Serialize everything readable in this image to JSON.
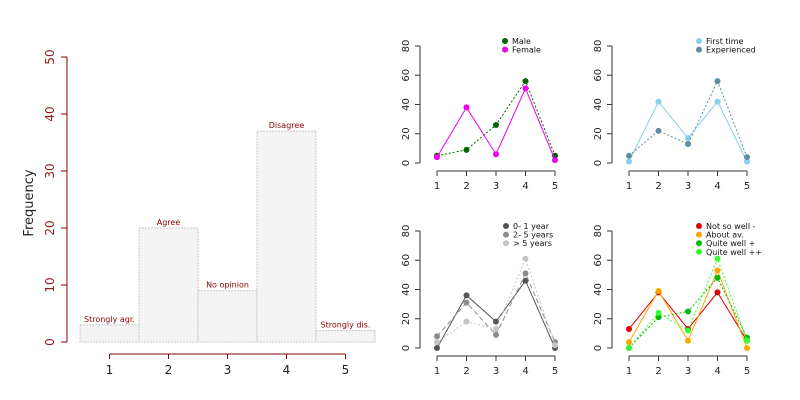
{
  "chart_data": [
    {
      "type": "bar",
      "ylabel": "Frequency",
      "categories": [
        "1",
        "2",
        "3",
        "4",
        "5"
      ],
      "bar_labels": [
        "Strongly agr.",
        "Agree",
        "No opinion",
        "Disagree",
        "Strongly dis."
      ],
      "values": [
        3,
        20,
        9,
        37,
        2
      ],
      "ylim": [
        0,
        50
      ],
      "yticks": [
        0,
        10,
        20,
        30,
        40,
        50
      ],
      "grid": false
    },
    {
      "type": "line",
      "x": [
        1,
        2,
        3,
        4,
        5
      ],
      "ylim": [
        0,
        80
      ],
      "yticks": [
        0,
        20,
        40,
        60,
        80
      ],
      "legend_position": "top-right",
      "series": [
        {
          "name": "Male",
          "values": [
            5,
            9,
            26,
            56,
            5
          ],
          "color": "#006400",
          "dash": "2,2"
        },
        {
          "name": "Female",
          "values": [
            4,
            38,
            6,
            51,
            2
          ],
          "color": "#ee00ee",
          "dash": ""
        }
      ]
    },
    {
      "type": "line",
      "x": [
        1,
        2,
        3,
        4,
        5
      ],
      "ylim": [
        0,
        80
      ],
      "yticks": [
        0,
        20,
        40,
        60,
        80
      ],
      "legend_position": "top-right",
      "series": [
        {
          "name": "First time",
          "values": [
            1,
            42,
            17,
            42,
            1
          ],
          "color": "#87ceeb",
          "dash": ""
        },
        {
          "name": "Experienced",
          "values": [
            5,
            22,
            13,
            56,
            4
          ],
          "color": "#5f8f9f",
          "dash": "2,2"
        }
      ]
    },
    {
      "type": "line",
      "x": [
        1,
        2,
        3,
        4,
        5
      ],
      "ylim": [
        0,
        80
      ],
      "yticks": [
        0,
        20,
        40,
        60,
        80
      ],
      "legend_position": "top-right",
      "series": [
        {
          "name": "0- 1 year",
          "values": [
            0,
            36,
            18,
            46,
            0
          ],
          "color": "#555555",
          "dash": ""
        },
        {
          "name": "2- 5 years",
          "values": [
            8,
            31,
            9,
            51,
            4
          ],
          "color": "#8c8c8c",
          "dash": "5,3"
        },
        {
          "name": "> 5 years",
          "values": [
            4,
            18,
            13,
            61,
            2
          ],
          "color": "#c4c4c4",
          "dash": "2,2"
        }
      ]
    },
    {
      "type": "line",
      "x": [
        1,
        2,
        3,
        4,
        5
      ],
      "ylim": [
        0,
        80
      ],
      "yticks": [
        0,
        20,
        40,
        60,
        80
      ],
      "legend_position": "top-right",
      "series": [
        {
          "name": "Not so well -",
          "values": [
            13,
            38,
            13,
            38,
            5
          ],
          "color": "#dd0000",
          "dash": ""
        },
        {
          "name": "About av.",
          "values": [
            4,
            39,
            5,
            53,
            0
          ],
          "color": "#ffa500",
          "dash": ""
        },
        {
          "name": "Quite well +",
          "values": [
            0,
            21,
            25,
            48,
            7
          ],
          "color": "#00bb00",
          "dash": "2,2"
        },
        {
          "name": "Quite well ++",
          "values": [
            0,
            24,
            12,
            61,
            5
          ],
          "color": "#33ff33",
          "dash": "2,2"
        }
      ]
    }
  ]
}
